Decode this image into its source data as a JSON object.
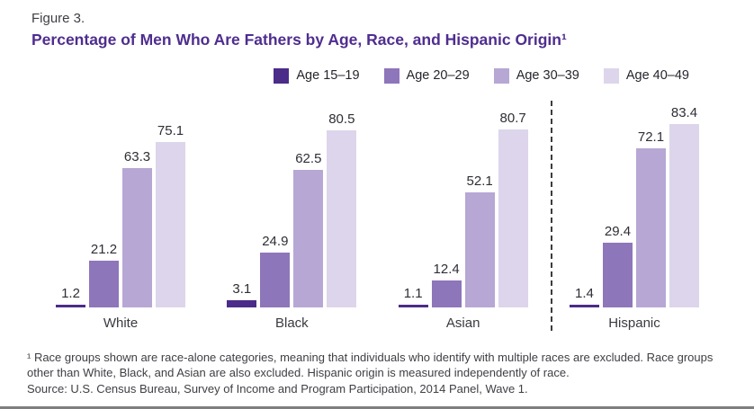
{
  "figure": {
    "label": "Figure 3.",
    "title": "Percentage of Men Who Are Fathers by Age, Race, and Hispanic Origin¹"
  },
  "chart_data": {
    "type": "bar",
    "title": "Percentage of Men Who Are Fathers by Age, Race, and Hispanic Origin",
    "categories": [
      "White",
      "Black",
      "Asian",
      "Hispanic"
    ],
    "series": [
      {
        "name": "Age 15–19",
        "color": "#4c2c89",
        "values": [
          1.2,
          3.1,
          1.1,
          1.4
        ]
      },
      {
        "name": "Age 20–29",
        "color": "#8e76ba",
        "values": [
          21.2,
          24.9,
          12.4,
          29.4
        ]
      },
      {
        "name": "Age 30–39",
        "color": "#b7a7d4",
        "values": [
          63.3,
          62.5,
          52.1,
          72.1
        ]
      },
      {
        "name": "Age 40–49",
        "color": "#ddd5eb",
        "values": [
          75.1,
          80.5,
          80.7,
          83.4
        ]
      }
    ],
    "xlabel": "",
    "ylabel": "",
    "ylim": [
      0,
      90
    ],
    "grid": false,
    "legend_position": "top",
    "value_labels": true,
    "separator_after_category": "Asian"
  },
  "footnotes": {
    "note": "¹ Race groups shown are race-alone categories, meaning that individuals who identify with multiple races are excluded. Race groups other than White, Black, and Asian are also excluded. Hispanic origin is measured independently of race.",
    "source": "Source: U.S. Census Bureau, Survey of Income and Program Participation, 2014 Panel, Wave 1."
  },
  "colors": {
    "title_purple": "#4f2d8f",
    "text_dark": "#3f3e44",
    "divider": "#3c3c3c",
    "bottom_rule": "#7f7f7f"
  }
}
